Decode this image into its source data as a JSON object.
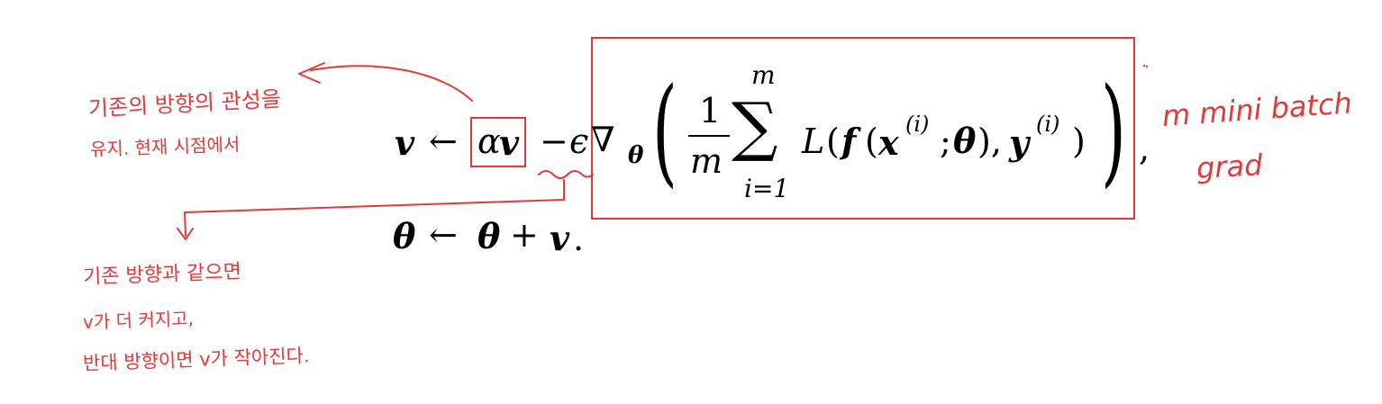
{
  "equation": {
    "line1": {
      "v": "v",
      "arrow": "←",
      "alpha": "α",
      "v2": "v",
      "minus": "−",
      "epsilon": "ϵ",
      "nabla": "∇",
      "theta_sub": "θ",
      "lparen": "(",
      "frac_num": "1",
      "frac_den": "m",
      "sum_top": "m",
      "sum": "∑",
      "sum_bottom": "i=1",
      "L": "L",
      "open": "(",
      "f": "f",
      "open2": "(",
      "x": "x",
      "sup_i": "(i)",
      "semicolon": ";",
      "theta": "θ",
      "close_comma": "),",
      "y": "y",
      "sup_i2": "(i)",
      "close": ")",
      "rparen": ")",
      "comma": ","
    },
    "line2": {
      "theta": "θ",
      "arrow": "←",
      "theta2": "θ",
      "plus": "+",
      "v": "v",
      "period": "."
    }
  },
  "annotations": {
    "left_top_line1": "기존의 방향의 관성을",
    "left_top_line2": "유지. 현재 시점에서",
    "left_bottom_line1": "기존 방향과 같으면",
    "left_bottom_line2": "v가 더 커지고,",
    "left_bottom_line3": "반대 방향이면 v가 작아진다.",
    "right_line1": "m mini batch",
    "right_line2": "grad"
  },
  "colors": {
    "ink": "#e23a3a",
    "text": "#000000"
  }
}
